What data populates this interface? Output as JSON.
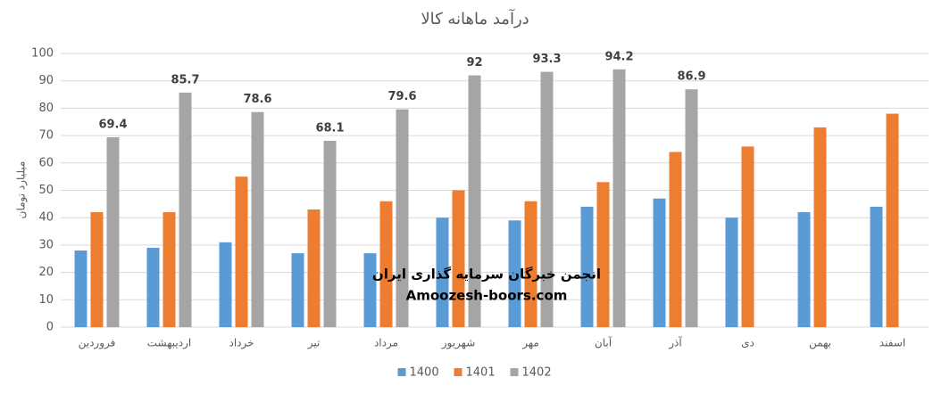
{
  "chart_data": {
    "type": "bar",
    "title": "درآمد ماهانه کالا",
    "ylabel": "میلیارد تومان",
    "categories": [
      "فروردین",
      "اردیبهشت",
      "خرداد",
      "تیر",
      "مرداد",
      "شهریور",
      "مهر",
      "آبان",
      "آذر",
      "دی",
      "بهمن",
      "اسفند"
    ],
    "series": [
      {
        "name": "1400",
        "color": "#5b9bd5",
        "values": [
          28,
          29,
          31,
          27,
          27,
          40,
          39,
          44,
          47,
          40,
          42,
          44
        ]
      },
      {
        "name": "1401",
        "color": "#ed7d31",
        "values": [
          42,
          42,
          55,
          43,
          46,
          50,
          46,
          53,
          64,
          66,
          73,
          78
        ]
      },
      {
        "name": "1402",
        "color": "#a5a5a5",
        "values": [
          69.4,
          85.7,
          78.6,
          68.1,
          79.6,
          92,
          93.3,
          94.2,
          86.9,
          null,
          null,
          null
        ],
        "data_labels": true
      }
    ],
    "ylim": [
      0,
      100
    ],
    "yticks": [
      0,
      10,
      20,
      30,
      40,
      50,
      60,
      70,
      80,
      90,
      100
    ],
    "grid": true,
    "legend": "bottom",
    "annotations": [
      "انجمن خبرگان سرمایه گذاری ایران",
      "Amoozesh-boors.com"
    ]
  }
}
